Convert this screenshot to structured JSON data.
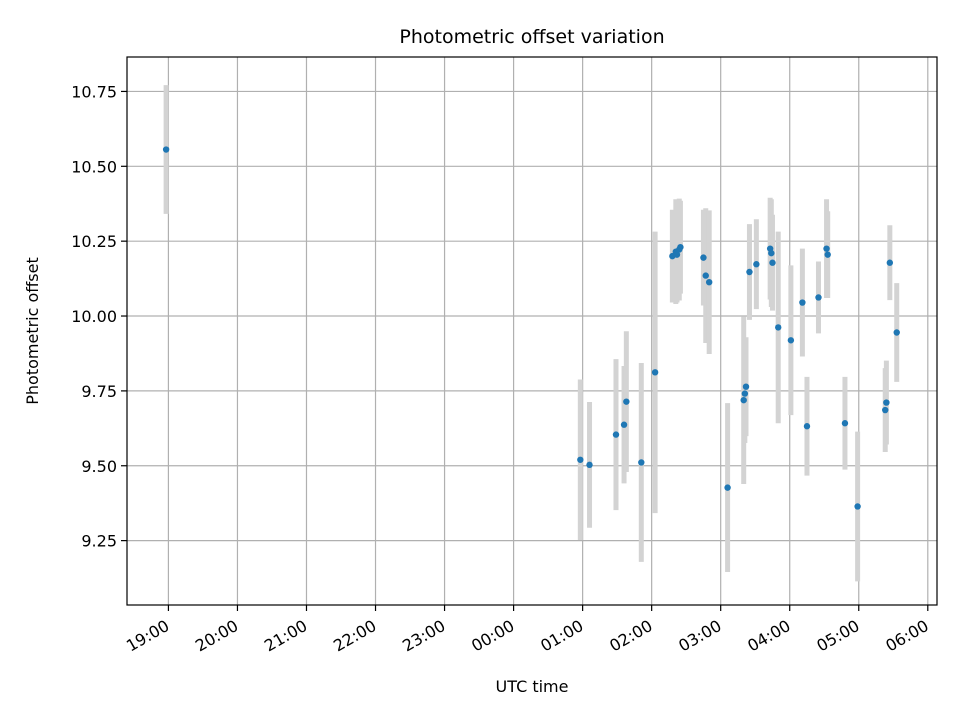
{
  "chart_data": {
    "type": "scatter",
    "title": "Photometric offset variation",
    "xlabel": "UTC time",
    "ylabel": "Photometric offset",
    "x_axis": "time",
    "xlim": [
      "18:24",
      "06:08"
    ],
    "ylim": [
      9.035,
      10.865
    ],
    "grid": true,
    "xticks": [
      "19:00",
      "20:00",
      "21:00",
      "22:00",
      "23:00",
      "00:00",
      "01:00",
      "02:00",
      "03:00",
      "04:00",
      "05:00",
      "06:00"
    ],
    "yticks": [
      9.25,
      9.5,
      9.75,
      10.0,
      10.25,
      10.5,
      10.75
    ],
    "ytick_labels": [
      "9.25",
      "9.50",
      "9.75",
      "10.00",
      "10.25",
      "10.50",
      "10.75"
    ],
    "point_color": "#1f77b4",
    "errorbar_color": "#d3d3d3",
    "points": [
      {
        "time": "18:58",
        "y": 10.556,
        "err": 0.215
      },
      {
        "time": "00:58",
        "y": 9.52,
        "err": 0.268
      },
      {
        "time": "01:06",
        "y": 9.503,
        "err": 0.21
      },
      {
        "time": "01:29",
        "y": 9.604,
        "err": 0.252
      },
      {
        "time": "01:36",
        "y": 9.637,
        "err": 0.196
      },
      {
        "time": "01:38",
        "y": 9.714,
        "err": 0.235
      },
      {
        "time": "01:51",
        "y": 9.511,
        "err": 0.332
      },
      {
        "time": "02:03",
        "y": 9.812,
        "err": 0.47
      },
      {
        "time": "02:18",
        "y": 10.2,
        "err": 0.155
      },
      {
        "time": "02:21",
        "y": 10.215,
        "err": 0.175
      },
      {
        "time": "02:22",
        "y": 10.205,
        "err": 0.16
      },
      {
        "time": "02:24",
        "y": 10.222,
        "err": 0.17
      },
      {
        "time": "02:25",
        "y": 10.23,
        "err": 0.155
      },
      {
        "time": "02:45",
        "y": 10.195,
        "err": 0.16
      },
      {
        "time": "02:47",
        "y": 10.135,
        "err": 0.225
      },
      {
        "time": "02:50",
        "y": 10.113,
        "err": 0.24
      },
      {
        "time": "03:06",
        "y": 9.427,
        "err": 0.282
      },
      {
        "time": "03:20",
        "y": 9.719,
        "err": 0.28
      },
      {
        "time": "03:21",
        "y": 9.741,
        "err": 0.165
      },
      {
        "time": "03:22",
        "y": 9.764,
        "err": 0.165
      },
      {
        "time": "03:25",
        "y": 10.147,
        "err": 0.16
      },
      {
        "time": "03:31",
        "y": 10.173,
        "err": 0.15
      },
      {
        "time": "03:43",
        "y": 10.225,
        "err": 0.17
      },
      {
        "time": "03:44",
        "y": 10.21,
        "err": 0.18
      },
      {
        "time": "03:45",
        "y": 10.178,
        "err": 0.16
      },
      {
        "time": "03:50",
        "y": 9.962,
        "err": 0.32
      },
      {
        "time": "04:01",
        "y": 9.919,
        "err": 0.25
      },
      {
        "time": "04:11",
        "y": 10.045,
        "err": 0.18
      },
      {
        "time": "04:15",
        "y": 9.632,
        "err": 0.165
      },
      {
        "time": "04:25",
        "y": 10.062,
        "err": 0.12
      },
      {
        "time": "04:32",
        "y": 10.225,
        "err": 0.165
      },
      {
        "time": "04:33",
        "y": 10.205,
        "err": 0.145
      },
      {
        "time": "04:48",
        "y": 9.642,
        "err": 0.155
      },
      {
        "time": "04:59",
        "y": 9.364,
        "err": 0.25
      },
      {
        "time": "05:23",
        "y": 9.686,
        "err": 0.14
      },
      {
        "time": "05:24",
        "y": 9.711,
        "err": 0.14
      },
      {
        "time": "05:27",
        "y": 10.178,
        "err": 0.125
      },
      {
        "time": "05:33",
        "y": 9.945,
        "err": 0.165
      }
    ]
  }
}
